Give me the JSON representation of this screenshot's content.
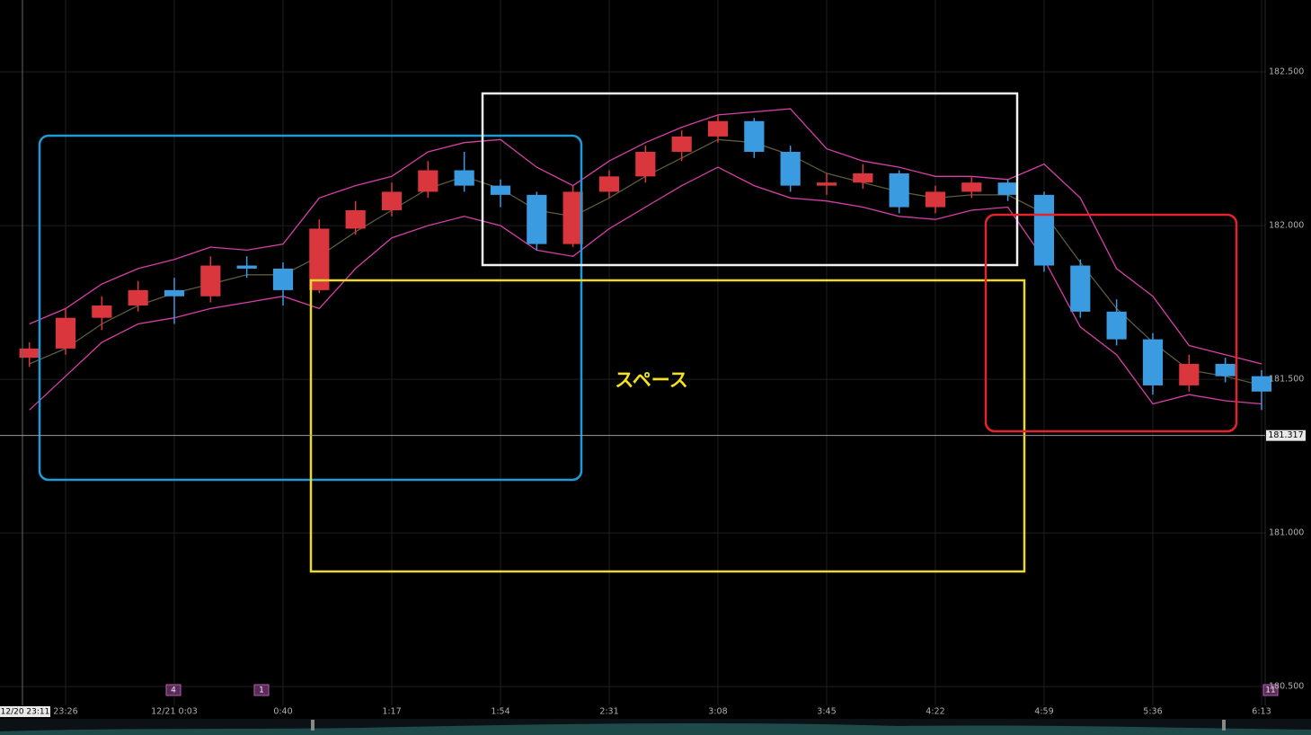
{
  "chart_data": {
    "type": "candlestick",
    "categories": [
      null,
      null,
      null,
      null,
      null,
      null,
      null,
      null,
      null,
      null,
      null,
      null,
      null,
      null,
      null,
      null,
      null,
      null,
      null,
      null,
      null,
      null,
      null,
      null,
      null,
      null,
      null,
      null,
      null,
      null,
      null,
      null,
      null,
      null,
      null
    ],
    "open": [
      181.57,
      181.6,
      181.7,
      181.74,
      181.79,
      181.77,
      181.87,
      181.86,
      181.79,
      181.99,
      182.05,
      182.11,
      182.18,
      182.13,
      182.1,
      181.94,
      182.11,
      182.16,
      182.24,
      182.29,
      182.34,
      182.24,
      182.13,
      182.14,
      182.17,
      182.06,
      182.11,
      182.14,
      182.1,
      181.87,
      181.72,
      181.63,
      181.48,
      181.55,
      181.51
    ],
    "high": [
      181.62,
      181.73,
      181.77,
      181.82,
      181.83,
      181.9,
      181.9,
      181.88,
      182.02,
      182.08,
      182.14,
      182.21,
      182.24,
      182.15,
      182.11,
      182.13,
      182.18,
      182.26,
      182.31,
      182.36,
      182.35,
      182.26,
      182.17,
      182.2,
      182.18,
      182.13,
      182.16,
      182.15,
      182.11,
      181.89,
      181.76,
      181.65,
      181.58,
      181.57,
      181.53
    ],
    "low": [
      181.54,
      181.58,
      181.66,
      181.72,
      181.68,
      181.75,
      181.83,
      181.74,
      181.78,
      181.97,
      182.03,
      182.09,
      182.11,
      182.06,
      181.92,
      181.93,
      182.09,
      182.14,
      182.21,
      182.27,
      182.22,
      182.11,
      182.1,
      182.12,
      182.04,
      182.04,
      182.09,
      182.08,
      181.85,
      181.7,
      181.61,
      181.45,
      181.46,
      181.49,
      181.4
    ],
    "close": [
      181.6,
      181.7,
      181.74,
      181.79,
      181.77,
      181.87,
      181.86,
      181.79,
      181.99,
      182.05,
      182.11,
      182.18,
      182.13,
      182.1,
      181.94,
      182.11,
      182.16,
      182.24,
      182.29,
      182.34,
      182.24,
      182.13,
      182.14,
      182.17,
      182.06,
      182.11,
      182.14,
      182.1,
      181.87,
      181.72,
      181.63,
      181.48,
      181.55,
      181.51,
      181.46
    ],
    "up_color": "#d9363e",
    "down_color": "#3b9be0",
    "bands": {
      "upper": [
        181.68,
        181.73,
        181.81,
        181.86,
        181.89,
        181.93,
        181.92,
        181.94,
        182.09,
        182.13,
        182.16,
        182.24,
        182.27,
        182.28,
        182.19,
        182.13,
        182.21,
        182.27,
        182.32,
        182.36,
        182.37,
        182.38,
        182.25,
        182.21,
        182.19,
        182.16,
        182.16,
        182.15,
        182.2,
        182.09,
        181.86,
        181.77,
        181.61,
        181.58,
        181.55
      ],
      "middle": [
        181.55,
        181.6,
        181.68,
        181.74,
        181.78,
        181.81,
        181.84,
        181.84,
        181.9,
        181.98,
        182.05,
        182.12,
        182.16,
        182.12,
        182.05,
        182.03,
        182.09,
        182.16,
        182.22,
        182.28,
        182.27,
        182.23,
        182.17,
        182.14,
        182.11,
        182.09,
        182.1,
        182.1,
        182.04,
        181.88,
        181.73,
        181.62,
        181.53,
        181.51,
        181.48
      ],
      "lower": [
        181.4,
        181.51,
        181.62,
        181.68,
        181.7,
        181.73,
        181.75,
        181.77,
        181.73,
        181.86,
        181.96,
        182.0,
        182.03,
        182.0,
        181.92,
        181.9,
        181.99,
        182.06,
        182.13,
        182.19,
        182.13,
        182.09,
        182.08,
        182.06,
        182.03,
        182.02,
        182.05,
        182.06,
        181.89,
        181.67,
        181.58,
        181.42,
        181.45,
        181.43,
        181.42
      ],
      "band_color": "#d63fa6",
      "middle_color": "#5e5a3c"
    },
    "ylim": [
      180.439,
      182.734
    ],
    "yticks": [
      {
        "value": 180.5,
        "label": "180.500"
      },
      {
        "value": 181,
        "label": "181.000"
      },
      {
        "value": 181.5,
        "label": "181.500"
      },
      {
        "value": 182,
        "label": "182.000"
      },
      {
        "value": 182.5,
        "label": "182.500"
      }
    ],
    "xlim": [
      -0.81,
      34.1
    ],
    "xticks": [
      {
        "value": 1,
        "label": "23:26"
      },
      {
        "value": 4,
        "label": "12/21 0:03"
      },
      {
        "value": 7,
        "label": "0:40"
      },
      {
        "value": 10,
        "label": "1:17"
      },
      {
        "value": 13,
        "label": "1:54"
      },
      {
        "value": 16,
        "label": "2:31"
      },
      {
        "value": 19,
        "label": "3:08"
      },
      {
        "value": 22,
        "label": "3:45"
      },
      {
        "value": 25,
        "label": "4:22"
      },
      {
        "value": 28,
        "label": "4:59"
      },
      {
        "value": 31,
        "label": "5:36"
      },
      {
        "value": 34,
        "label": "6:13"
      }
    ],
    "grid": true,
    "price_line": {
      "value": 181.317,
      "label": "181.317"
    },
    "crosshair_label": "12/20 23:11",
    "event_markers": [
      "4",
      "1",
      "11"
    ],
    "annotation": "スペース"
  }
}
